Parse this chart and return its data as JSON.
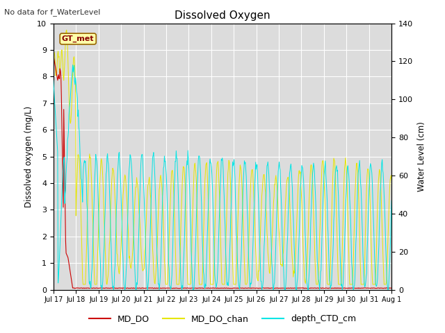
{
  "title": "Dissolved Oxygen",
  "note": "No data for f_WaterLevel",
  "ylabel_left": "Dissolved oxygen (mg/L)",
  "ylabel_right": "Water Level (cm)",
  "ylim_left": [
    0.0,
    10.0
  ],
  "ylim_right": [
    0,
    140
  ],
  "yticks_left": [
    0.0,
    1.0,
    2.0,
    3.0,
    4.0,
    5.0,
    6.0,
    7.0,
    8.0,
    9.0,
    10.0
  ],
  "yticks_right": [
    0,
    20,
    40,
    60,
    80,
    100,
    120,
    140
  ],
  "xtick_labels": [
    "Jul 17",
    "Jul 18",
    "Jul 19",
    "Jul 20",
    "Jul 21",
    "Jul 22",
    "Jul 23",
    "Jul 24",
    "Jul 25",
    "Jul 26",
    "Jul 27",
    "Jul 28",
    "Jul 29",
    "Jul 30",
    "Jul 31",
    "Aug 1"
  ],
  "color_MD_DO": "#cc0000",
  "color_MD_DO_chan": "#e6e600",
  "color_depth_CTD_cm": "#00e5e5",
  "gt_met_label": "GT_met",
  "gt_met_facecolor": "#ffffaa",
  "gt_met_edgecolor": "#996600",
  "gt_met_textcolor": "#880000",
  "legend_labels": [
    "MD_DO",
    "MD_DO_chan",
    "depth_CTD_cm"
  ],
  "background_color": "#dcdcdc",
  "fig_background": "#ffffff"
}
